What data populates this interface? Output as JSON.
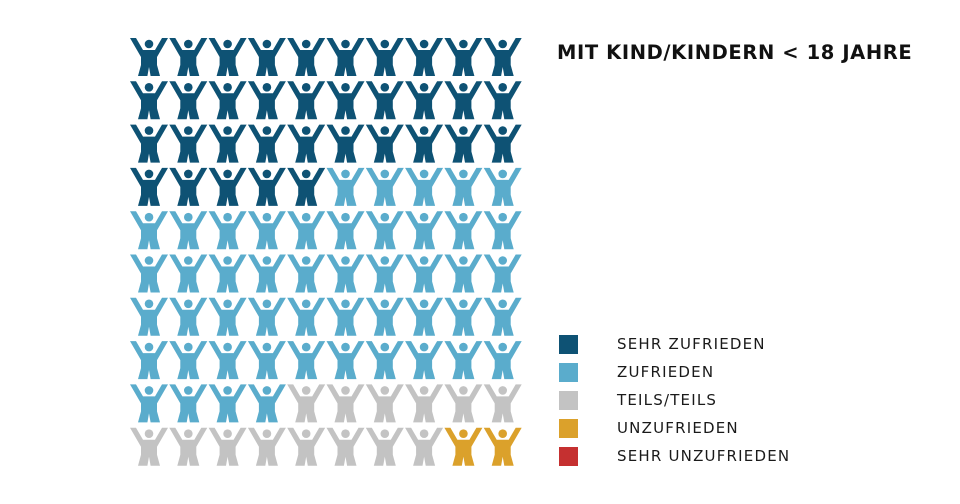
{
  "chart_data": {
    "type": "pictogram",
    "title": "MIT KIND/KINDERN < 18 JAHRE",
    "unit_count": 100,
    "grid": "10x10",
    "series": [
      {
        "name": "SEHR ZUFRIEDEN",
        "value": 35,
        "color": "#0e5274"
      },
      {
        "name": "ZUFRIEDEN",
        "value": 49,
        "color": "#5aaccc"
      },
      {
        "name": "TEILS/TEILS",
        "value": 14,
        "color": "#c3c3c3"
      },
      {
        "name": "UNZUFRIEDEN",
        "value": 2,
        "color": "#dba12b"
      },
      {
        "name": "SEHR UNZUFRIEDEN",
        "value": 0,
        "color": "#c53030"
      }
    ],
    "legend_position": "bottom-right"
  }
}
